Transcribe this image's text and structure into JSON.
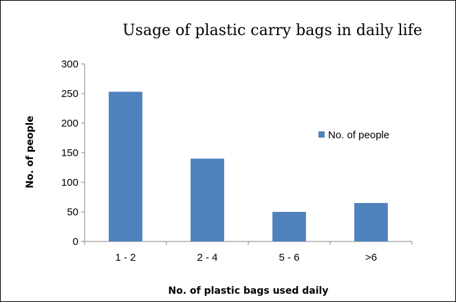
{
  "chart_data": {
    "type": "bar",
    "title": "Usage of plastic carry bags in daily life",
    "xlabel": "No. of plastic bags used daily",
    "ylabel": "No. of people",
    "categories": [
      "1 - 2",
      "2 - 4",
      "5 - 6",
      ">6"
    ],
    "series": [
      {
        "name": "No. of people",
        "values": [
          253,
          140,
          50,
          65
        ],
        "color": "#4F81BD"
      }
    ],
    "ylim": [
      0,
      300
    ],
    "yticks": [
      0,
      50,
      100,
      150,
      200,
      250,
      300
    ],
    "grid": false,
    "legend": "right"
  }
}
